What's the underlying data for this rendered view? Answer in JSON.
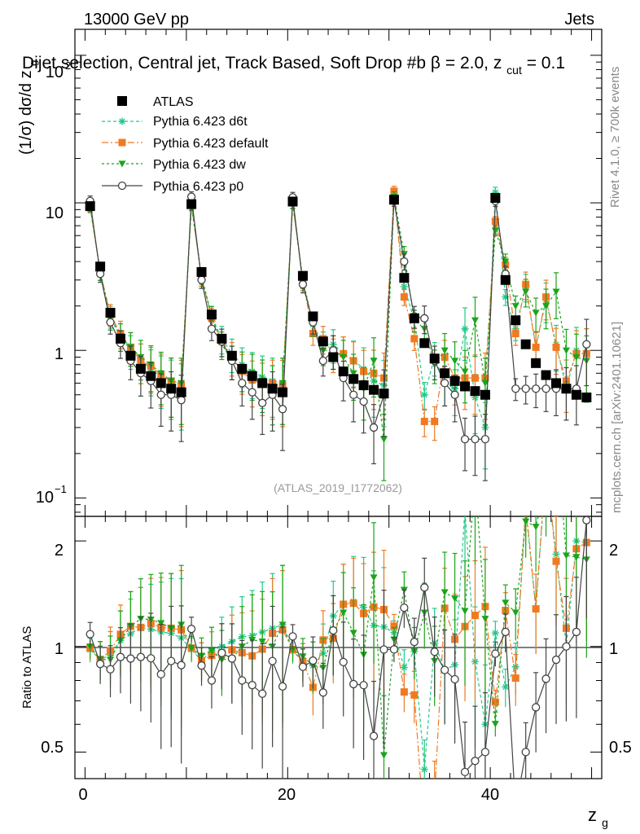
{
  "header": {
    "energy": "13000 GeV pp",
    "category": "Jets",
    "selection": "Dijet selection, Central jet, Track Based, Soft Drop #b",
    "cut_text": "= 2.0, z",
    "cut_sub": "cut",
    "cut_value": " = 0.1",
    "beta_symbol": "β"
  },
  "side_labels": {
    "rivet": "Rivet 4.1.0, ≥ 700k events",
    "mcplots": "mcplots.cern.ch [arXiv:2401.10621]"
  },
  "watermark": "(ATLAS_2019_I1772062)",
  "axes": {
    "main_ylabel": "(1/σ) dσ/d z",
    "main_ylabel_sub": "g",
    "ratio_ylabel": "Ratio to ATLAS",
    "xlabel": "z",
    "xlabel_sub": "g",
    "main_ytick_labels": [
      "10",
      "1",
      "10",
      "10"
    ],
    "main_ytick_exps": [
      "2",
      "",
      "",
      "−1"
    ],
    "ratio_ytick_labels": [
      "0.5",
      "1",
      "2"
    ],
    "xtick_labels": [
      "0",
      "20",
      "40"
    ]
  },
  "legend": [
    "ATLAS",
    "Pythia 6.423 d6t",
    "Pythia 6.423 default",
    "Pythia 6.423 dw",
    "Pythia 6.423 p0"
  ],
  "colors": {
    "atlas": "#000000",
    "d6t": "#22c98a",
    "default": "#f07a22",
    "dw": "#1aa51a",
    "p0": "#444444"
  },
  "chart_data": {
    "type": "scatter",
    "xlabel": "z_g",
    "ylabel": "(1/σ) dσ/d z_g",
    "yscale": "log",
    "xlim": [
      -1,
      51
    ],
    "ylim": [
      0.075,
      150
    ],
    "ratio_ylim": [
      0.42,
      2.35
    ],
    "x": [
      0.5,
      1.5,
      2.5,
      3.5,
      4.5,
      5.5,
      6.5,
      7.5,
      8.5,
      9.5,
      10.5,
      11.5,
      12.5,
      13.5,
      14.5,
      15.5,
      16.5,
      17.5,
      18.5,
      19.5,
      20.5,
      21.5,
      22.5,
      23.5,
      24.5,
      25.5,
      26.5,
      27.5,
      28.5,
      29.5,
      30.5,
      31.5,
      32.5,
      33.5,
      34.5,
      35.5,
      36.5,
      37.5,
      38.5,
      39.5,
      40.5,
      41.5,
      42.5,
      43.5,
      44.5,
      45.5,
      46.5,
      47.5,
      48.5,
      49.5
    ],
    "series": [
      {
        "name": "ATLAS",
        "values": [
          9.5,
          3.7,
          1.8,
          1.2,
          0.92,
          0.75,
          0.67,
          0.6,
          0.55,
          0.52,
          9.8,
          3.4,
          1.75,
          1.2,
          0.92,
          0.75,
          0.67,
          0.6,
          0.55,
          0.52,
          10.2,
          3.2,
          1.7,
          1.15,
          0.9,
          0.72,
          0.64,
          0.58,
          0.54,
          0.51,
          10.5,
          3.1,
          1.65,
          1.12,
          0.88,
          0.7,
          0.62,
          0.57,
          0.53,
          0.5,
          10.8,
          3.0,
          1.6,
          1.1,
          0.82,
          0.68,
          0.6,
          0.55,
          0.5,
          0.48
        ]
      },
      {
        "name": "Pythia 6.423 d6t",
        "values": [
          9.3,
          3.4,
          1.7,
          1.25,
          1.0,
          0.85,
          0.75,
          0.66,
          0.6,
          0.55,
          9.6,
          3.1,
          1.7,
          1.2,
          0.95,
          0.8,
          0.72,
          0.66,
          0.62,
          0.6,
          9.9,
          2.9,
          1.5,
          1.1,
          1.1,
          0.95,
          0.86,
          0.75,
          0.62,
          0.58,
          11.5,
          2.7,
          1.6,
          0.5,
          0.9,
          0.6,
          0.55,
          1.4,
          0.48,
          0.3,
          11.8,
          2.3,
          1.4,
          2.7,
          1.05,
          2.2,
          1.1,
          0.55,
          1.0,
          0.95
        ]
      },
      {
        "name": "Pythia 6.423 default",
        "values": [
          9.4,
          3.4,
          1.75,
          1.3,
          1.05,
          0.85,
          0.78,
          0.68,
          0.62,
          0.58,
          9.7,
          3.1,
          1.65,
          1.15,
          0.9,
          0.72,
          0.63,
          0.59,
          0.6,
          0.58,
          10.0,
          2.9,
          1.3,
          1.2,
          0.95,
          0.95,
          0.85,
          0.72,
          0.7,
          0.65,
          12.0,
          2.3,
          1.2,
          0.33,
          0.33,
          0.9,
          0.65,
          0.65,
          0.65,
          0.65,
          7.5,
          3.8,
          1.3,
          2.8,
          1.05,
          2.3,
          1.05,
          0.62,
          0.95,
          0.95
        ]
      },
      {
        "name": "Pythia 6.423 dw",
        "values": [
          9.5,
          3.4,
          1.65,
          1.25,
          1.05,
          0.9,
          0.8,
          0.7,
          0.62,
          0.6,
          9.7,
          3.2,
          1.7,
          1.1,
          0.85,
          0.75,
          0.7,
          0.62,
          0.55,
          0.6,
          10.0,
          3.0,
          1.5,
          1.0,
          1.0,
          0.9,
          0.7,
          0.55,
          0.85,
          0.25,
          11.0,
          4.5,
          1.6,
          1.4,
          0.8,
          1.0,
          0.85,
          0.72,
          1.6,
          0.6,
          6.5,
          4.0,
          2.0,
          2.5,
          1.8,
          2.0,
          2.5,
          1.0,
          0.9,
          0.85
        ]
      },
      {
        "name": "Pythia 6.423 p0",
        "values": [
          10.3,
          3.3,
          1.55,
          1.12,
          0.85,
          0.7,
          0.62,
          0.5,
          0.5,
          0.46,
          11.0,
          3.0,
          1.4,
          1.15,
          0.85,
          0.6,
          0.52,
          0.44,
          0.5,
          0.4,
          10.9,
          2.8,
          1.55,
          0.85,
          1.0,
          0.65,
          0.5,
          0.45,
          0.3,
          0.5,
          10.3,
          4.0,
          1.7,
          1.65,
          0.85,
          0.6,
          0.5,
          0.25,
          0.25,
          0.25,
          10.3,
          3.3,
          0.55,
          0.55,
          0.55,
          0.55,
          0.55,
          0.55,
          0.55,
          1.1
        ]
      }
    ]
  }
}
